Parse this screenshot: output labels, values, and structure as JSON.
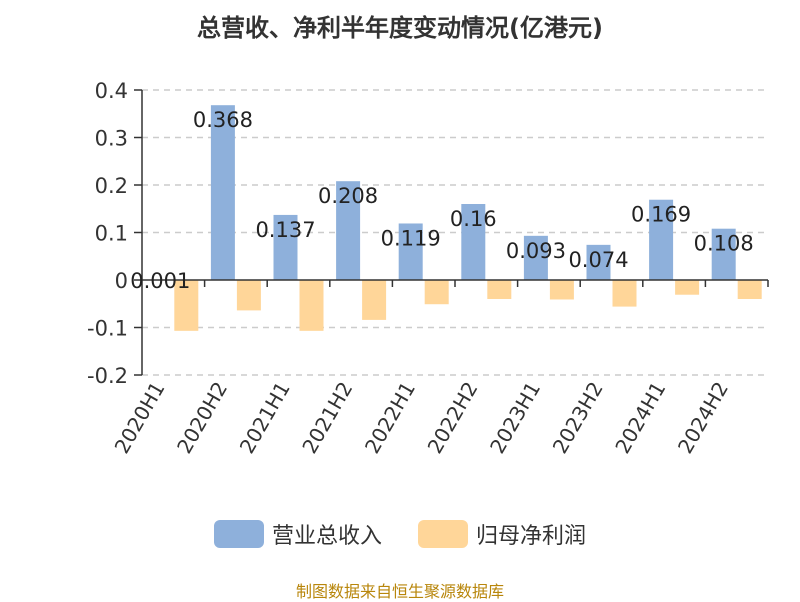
{
  "title": "总营收、净利半年度变动情况(亿港元)",
  "source": "制图数据来自恒生聚源数据库",
  "colors": {
    "revenue": "#8eb0db",
    "profit": "#ffd699",
    "axis": "#333333",
    "grid": "#cccccc",
    "label": "#222222"
  },
  "chart_data": {
    "type": "bar",
    "title": "总营收、净利半年度变动情况(亿港元)",
    "categories": [
      "2020H1",
      "2020H2",
      "2021H1",
      "2021H2",
      "2022H1",
      "2022H2",
      "2023H1",
      "2023H2",
      "2024H1",
      "2024H2"
    ],
    "series": [
      {
        "name": "营业总收入",
        "values": [
          0.001,
          0.368,
          0.137,
          0.208,
          0.119,
          0.16,
          0.093,
          0.074,
          0.169,
          0.108
        ],
        "labels": [
          "0.001",
          "0.368",
          "0.137",
          "0.208",
          "0.119",
          "0.16",
          "0.093",
          "0.074",
          "0.169",
          "0.108"
        ]
      },
      {
        "name": "归母净利润",
        "values": [
          -0.107,
          -0.064,
          -0.107,
          -0.084,
          -0.051,
          -0.04,
          -0.041,
          -0.056,
          -0.031,
          -0.04
        ]
      }
    ],
    "ylim": [
      -0.2,
      0.4
    ],
    "yticks": [
      0.4,
      0.3,
      0.2,
      0.1,
      0,
      -0.1,
      -0.2
    ],
    "ytick_labels": [
      "0.4",
      "0.3",
      "0.2",
      "0.1",
      "0",
      "-0.1",
      "-0.2"
    ],
    "grid": true,
    "legend_position": "bottom"
  }
}
